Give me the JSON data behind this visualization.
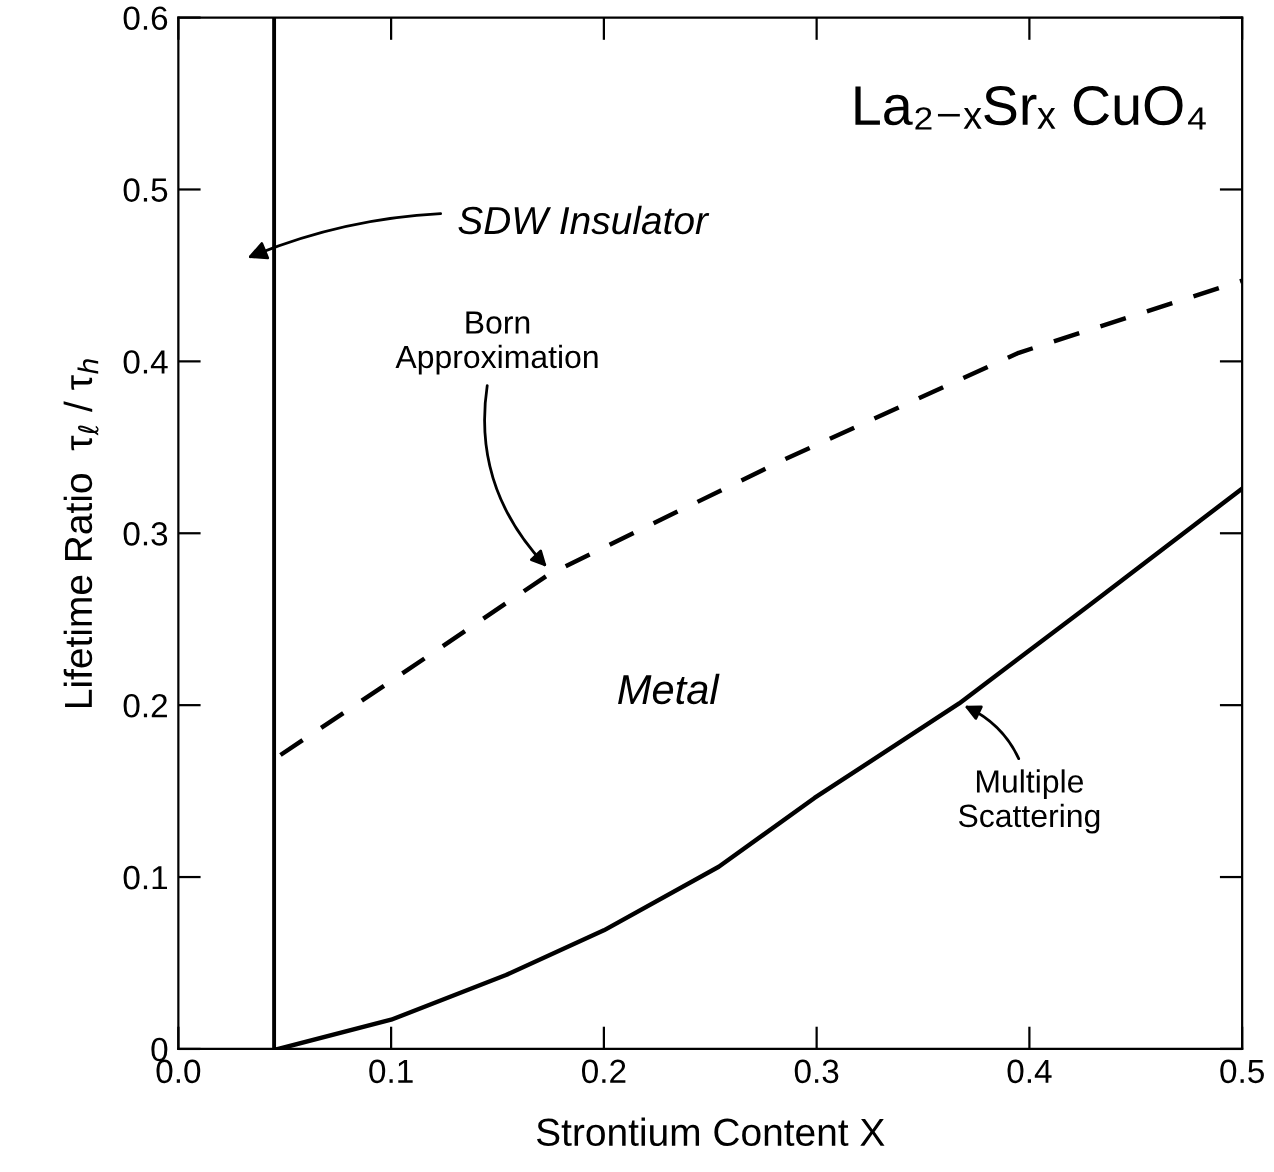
{
  "chart_data": {
    "type": "line",
    "title": "La₂₋ₓSrₓ CuO₄",
    "xlabel": "Strontium Content X",
    "ylabel": "Lifetime Ratio  τ$_{ℓ}$ / τ$_{h}$",
    "series": [
      {
        "color": "#000000",
        "line_style": "dashed",
        "x": [
          0.048,
          0.1,
          0.174,
          0.285,
          0.395,
          0.5
        ],
        "values": [
          0.171,
          0.214,
          0.276,
          0.343,
          0.405,
          0.447
        ]
      },
      {
        "color": "#000000",
        "line_style": "solid",
        "x": [
          0.047,
          0.1,
          0.154,
          0.2,
          0.254,
          0.299,
          0.367,
          0.428,
          0.5
        ],
        "values": [
          0.0,
          0.017,
          0.043,
          0.069,
          0.106,
          0.146,
          0.201,
          0.258,
          0.326
        ]
      }
    ],
    "ref_lines": [
      {
        "axis": "x",
        "value": 0.045,
        "color": "#000000",
        "line_style": "solid"
      }
    ],
    "annotations": [
      "SDW Insulator",
      {
        "text": "Born\nApproximation",
        "x": 0.175,
        "y": 0.278
      },
      {
        "text": "Multiple\nScattering",
        "x": 0.367,
        "y": 0.201
      },
      "Metal"
    ],
    "xlim": [
      0.0,
      0.5
    ],
    "ylim": [
      0,
      0.6
    ],
    "xticks": [
      {
        "value": 0.0,
        "label": "0.0"
      },
      0.1,
      0.2,
      0.3,
      0.4,
      0.5
    ],
    "yticks": [
      0,
      0.1,
      0.2,
      0.3,
      0.4,
      0.5,
      0.6
    ],
    "grid": false,
    "legend": false,
    "marker": "none"
  }
}
